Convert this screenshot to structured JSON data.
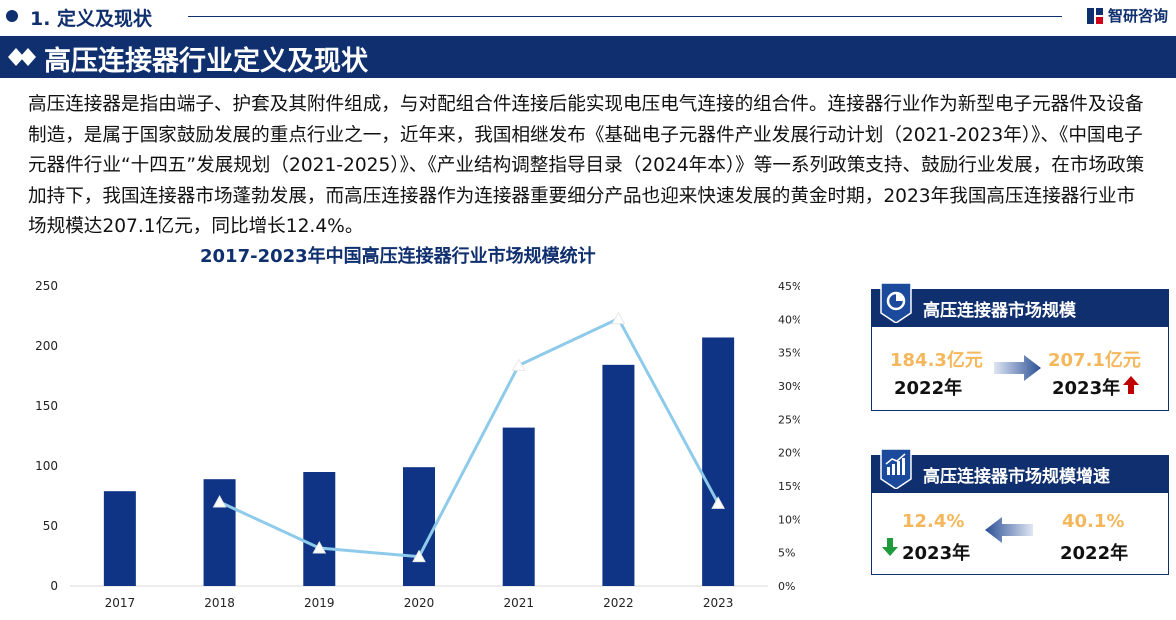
{
  "section": {
    "title": "1. 定义及现状"
  },
  "brand": {
    "name": "智研咨询"
  },
  "banner": {
    "title": "高压连接器行业定义及现状"
  },
  "intro": "高压连接器是指由端子、护套及其附件组成，与对配组合件连接后能实现电压电气连接的组合件。连接器行业作为新型电子元器件及设备制造，是属于国家鼓励发展的重点行业之一，近年来，我国相继发布《基础电子元器件产业发展行动计划（2021-2023年）》、《中国电子元器件行业“十四五”发展规划（2021-2025）》、《产业结构调整指导目录（2024年本）》等一系列政策支持、鼓励行业发展，在市场政策加持下，我国连接器市场蓬勃发展，而高压连接器作为连接器重要细分产品也迎来快速发展的黄金时期，2023年我国高压连接器行业市场规模达207.1亿元，同比增长12.4%。",
  "chart_data": {
    "type": "bar+line",
    "title": "2017-2023年中国高压连接器行业市场规模统计",
    "categories": [
      "2017",
      "2018",
      "2019",
      "2020",
      "2021",
      "2022",
      "2023"
    ],
    "series": [
      {
        "type": "bar",
        "axis": "left",
        "values": [
          79,
          89,
          95,
          99,
          132,
          184.3,
          207.1
        ]
      },
      {
        "type": "line",
        "axis": "right",
        "values": [
          null,
          12.6,
          5.7,
          4.4,
          33.1,
          40.1,
          12.4
        ]
      }
    ],
    "y_left": {
      "min": 0,
      "max": 250,
      "ticks": [
        "0",
        "50",
        "100",
        "150",
        "200",
        "250"
      ]
    },
    "y_right": {
      "min": 0,
      "max": 45,
      "ticks": [
        "0%",
        "5%",
        "10%",
        "15%",
        "20%",
        "25%",
        "30%",
        "35%",
        "40%",
        "45%"
      ]
    },
    "grid": false,
    "colors": {
      "bar": "#0f3485",
      "line": "#8ecbeb"
    }
  },
  "card_size": {
    "title": "高压连接器市场规模",
    "from_value": "184.3亿元",
    "from_year": "2022年",
    "to_value": "207.1亿元",
    "to_year": "2023年"
  },
  "card_growth": {
    "title": "高压连接器市场规模增速",
    "left_value": "12.4%",
    "left_year": "2023年",
    "right_value": "40.1%",
    "right_year": "2022年"
  },
  "colors": {
    "navy": "#0f2f6e",
    "orange": "#f5b75c",
    "up": "#c00000",
    "down": "#1f9a3c"
  }
}
